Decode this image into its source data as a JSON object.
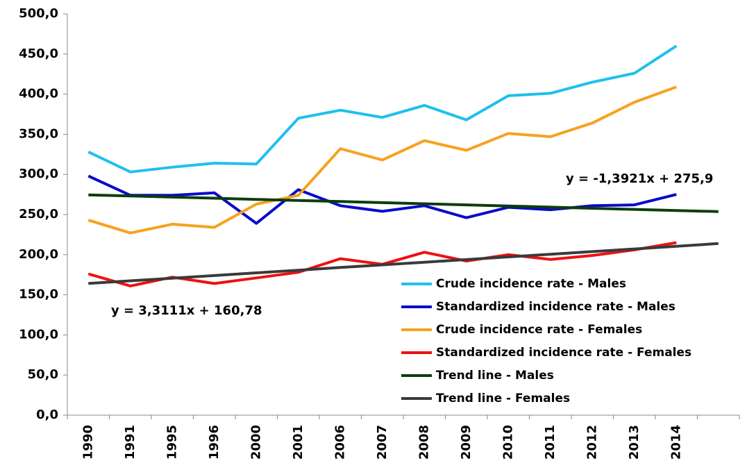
{
  "chart_data": {
    "type": "line",
    "categories": [
      "1990",
      "1991",
      "1995",
      "1996",
      "2000",
      "2001",
      "2006",
      "2007",
      "2008",
      "2009",
      "2010",
      "2011",
      "2012",
      "2013",
      "2014",
      null
    ],
    "series": [
      {
        "name": "Crude incidence rate - Males",
        "color": "#1fc0ee",
        "values": [
          328,
          303,
          309,
          314,
          313,
          370,
          380,
          371,
          386,
          368,
          398,
          401,
          415,
          426,
          460,
          null
        ]
      },
      {
        "name": "Standardized incidence rate - Males",
        "color": "#0a0acc",
        "values": [
          298,
          274,
          274,
          277,
          239,
          281,
          261,
          254,
          261,
          246,
          259,
          256,
          261,
          262,
          275,
          null
        ]
      },
      {
        "name": "Crude incidence rate - Females",
        "color": "#f6a21e",
        "values": [
          243,
          227,
          238,
          234,
          263,
          274,
          332,
          318,
          342,
          330,
          351,
          347,
          364,
          390,
          409,
          null
        ]
      },
      {
        "name": "Standardized incidence rate - Females",
        "color": "#ee1111",
        "values": [
          176,
          161,
          172,
          164,
          171,
          178,
          195,
          188,
          203,
          192,
          200,
          194,
          199,
          206,
          215,
          null
        ]
      },
      {
        "name": "Trend line - Males",
        "color": "#0b3d0b",
        "values": [
          274.5,
          273.1,
          271.7,
          270.3,
          268.9,
          267.5,
          266.2,
          264.8,
          263.4,
          262.0,
          260.6,
          259.2,
          257.8,
          256.4,
          255.0,
          253.6
        ]
      },
      {
        "name": "Trend line - Females",
        "color": "#3a3a3a",
        "values": [
          164.1,
          167.4,
          170.7,
          174.0,
          177.3,
          180.6,
          184.0,
          187.3,
          190.6,
          193.9,
          197.2,
          200.5,
          203.8,
          207.1,
          210.4,
          213.8
        ]
      }
    ],
    "annotations": [
      "y = -1,3921x + 275,9",
      "y = 3,3111x + 160,78"
    ],
    "ylim": [
      0,
      500
    ],
    "yticks": [
      {
        "value": 0,
        "label": "0,0"
      },
      {
        "value": 50,
        "label": "50,0"
      },
      {
        "value": 100,
        "label": "100,0"
      },
      {
        "value": 150,
        "label": "150,0"
      },
      {
        "value": 200,
        "label": "200,0"
      },
      {
        "value": 250,
        "label": "250,0"
      },
      {
        "value": 300,
        "label": "300,0"
      },
      {
        "value": 350,
        "label": "350,0"
      },
      {
        "value": 400,
        "label": "400,0"
      },
      {
        "value": 450,
        "label": "450,0"
      },
      {
        "value": 500,
        "label": "500,0"
      }
    ],
    "grid": false,
    "legend": "lower right"
  }
}
